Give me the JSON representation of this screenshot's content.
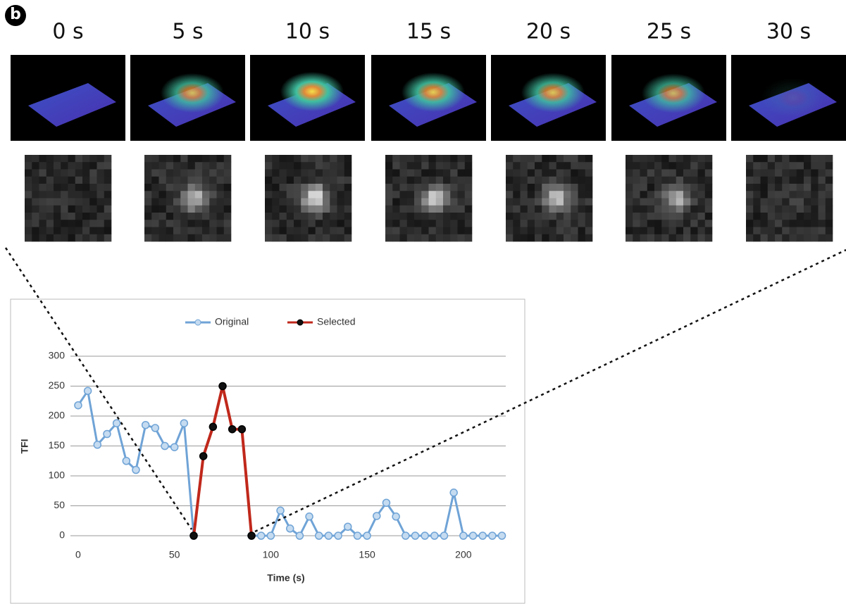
{
  "panel_label": "b",
  "frames": [
    "0 s",
    "5 s",
    "10 s",
    "15 s",
    "20 s",
    "25 s",
    "30 s"
  ],
  "chart_data": {
    "type": "line",
    "xlabel": "Time (s)",
    "ylabel": "TFI",
    "x": [
      0,
      5,
      10,
      15,
      20,
      25,
      30,
      35,
      40,
      45,
      50,
      55,
      60,
      65,
      70,
      75,
      80,
      85,
      90,
      95,
      100,
      105,
      110,
      115,
      120,
      125,
      130,
      135,
      140,
      145,
      150,
      155,
      160,
      165,
      170,
      175,
      180,
      185,
      190,
      195,
      200,
      205,
      210,
      215,
      220
    ],
    "series": [
      {
        "name": "Original",
        "color": "#6fa3d6",
        "marker_fill": "#c5dbf0",
        "values": [
          218,
          242,
          152,
          170,
          188,
          125,
          110,
          185,
          180,
          150,
          148,
          188,
          0,
          null,
          null,
          null,
          null,
          null,
          0,
          0,
          0,
          42,
          12,
          0,
          32,
          0,
          0,
          0,
          15,
          0,
          0,
          33,
          55,
          32,
          0,
          0,
          0,
          0,
          0,
          72,
          0,
          0,
          0,
          0,
          0
        ]
      },
      {
        "name": "Selected",
        "color": "#c0281b",
        "marker_fill": "#111111",
        "values": [
          null,
          null,
          null,
          null,
          null,
          null,
          null,
          null,
          null,
          null,
          null,
          null,
          0,
          133,
          182,
          250,
          178,
          178,
          0,
          null,
          null,
          null,
          null,
          null,
          null,
          null,
          null,
          null,
          null,
          null,
          null,
          null,
          null,
          null,
          null,
          null,
          null,
          null,
          null,
          null,
          null,
          null,
          null,
          null,
          null
        ]
      }
    ],
    "xlim": [
      -4,
      222
    ],
    "xticks": [
      0,
      50,
      100,
      150,
      200
    ],
    "ylim": [
      0,
      300
    ],
    "yticks": [
      0,
      50,
      100,
      150,
      200,
      250,
      300
    ],
    "grid": true,
    "legend": "top"
  }
}
